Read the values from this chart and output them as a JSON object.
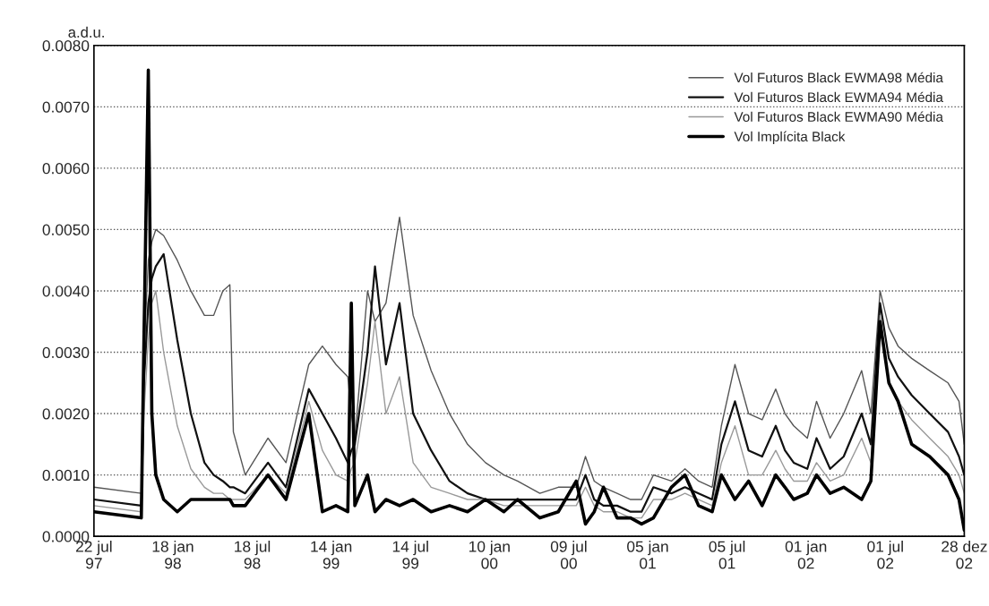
{
  "chart_data": {
    "type": "line",
    "ylabel": "a.d.u.",
    "x": [
      "1997-07-22",
      "1997-11-07",
      "1997-11-13",
      "1997-11-23",
      "1997-12-01",
      "1997-12-10",
      "1997-12-28",
      "1998-01-28",
      "1998-02-28",
      "1998-03-31",
      "1998-04-21",
      "1998-05-12",
      "1998-05-28",
      "1998-06-05",
      "1998-07-02",
      "1998-08-23",
      "1998-10-03",
      "1998-11-24",
      "1998-12-25",
      "1999-01-25",
      "1999-02-21",
      "1999-03-01",
      "1999-03-09",
      "1999-04-07",
      "1999-04-24",
      "1999-05-19",
      "1999-06-19",
      "1999-07-20",
      "1999-08-30",
      "1999-10-11",
      "1999-11-21",
      "2000-01-01",
      "2000-02-12",
      "2000-03-14",
      "2000-05-04",
      "2000-06-15",
      "2000-07-26",
      "2000-08-16",
      "2000-09-05",
      "2000-09-26",
      "2000-10-27",
      "2000-11-27",
      "2000-12-22",
      "2001-01-18",
      "2001-02-28",
      "2001-03-31",
      "2001-05-01",
      "2001-06-01",
      "2001-06-22",
      "2001-07-23",
      "2001-08-23",
      "2001-09-23",
      "2001-10-24",
      "2001-11-14",
      "2001-12-04",
      "2002-01-04",
      "2002-01-25",
      "2002-02-25",
      "2002-03-28",
      "2002-05-08",
      "2002-05-29",
      "2002-06-19",
      "2002-07-09",
      "2002-07-30",
      "2002-08-30",
      "2002-10-10",
      "2002-11-21",
      "2002-12-16",
      "2002-12-28"
    ],
    "series": [
      {
        "name": "Vol Futuros Black EWMA98 Média",
        "color": "#555555",
        "values": [
          0.0008,
          0.0007,
          0.003,
          0.0045,
          0.0048,
          0.005,
          0.0049,
          0.0045,
          0.004,
          0.0036,
          0.0036,
          0.004,
          0.0041,
          0.0017,
          0.001,
          0.0016,
          0.0012,
          0.0028,
          0.0031,
          0.0028,
          0.0026,
          0.002,
          0.0016,
          0.004,
          0.0035,
          0.0038,
          0.0052,
          0.0036,
          0.0027,
          0.002,
          0.0015,
          0.0012,
          0.001,
          0.0009,
          0.0007,
          0.0008,
          0.0008,
          0.0013,
          0.0009,
          0.0008,
          0.0007,
          0.0006,
          0.0006,
          0.001,
          0.0009,
          0.0011,
          0.0009,
          0.0008,
          0.0018,
          0.0028,
          0.002,
          0.0019,
          0.0024,
          0.002,
          0.0018,
          0.0016,
          0.0022,
          0.0016,
          0.002,
          0.0027,
          0.002,
          0.004,
          0.0034,
          0.0031,
          0.0029,
          0.0027,
          0.0025,
          0.0022,
          0.0015
        ]
      },
      {
        "name": "Vol Futuros Black EWMA94 Média",
        "color": "#111111",
        "values": [
          0.0006,
          0.0005,
          0.0025,
          0.0038,
          0.0042,
          0.0044,
          0.0046,
          0.0032,
          0.002,
          0.0012,
          0.001,
          0.0009,
          0.0008,
          0.0008,
          0.0007,
          0.0012,
          0.0008,
          0.0024,
          0.002,
          0.0016,
          0.0012,
          0.0014,
          0.0015,
          0.003,
          0.0044,
          0.0028,
          0.0038,
          0.002,
          0.0014,
          0.0009,
          0.0007,
          0.0006,
          0.0006,
          0.0006,
          0.0006,
          0.0006,
          0.0006,
          0.001,
          0.0006,
          0.0005,
          0.0005,
          0.0004,
          0.0004,
          0.0008,
          0.0007,
          0.0008,
          0.0007,
          0.0006,
          0.0015,
          0.0022,
          0.0014,
          0.0013,
          0.0018,
          0.0014,
          0.0012,
          0.0011,
          0.0016,
          0.0011,
          0.0013,
          0.002,
          0.0015,
          0.0038,
          0.0029,
          0.0026,
          0.0023,
          0.002,
          0.0017,
          0.0013,
          0.001
        ]
      },
      {
        "name": "Vol Futuros Black EWMA90 Média",
        "color": "#999999",
        "values": [
          0.0005,
          0.0004,
          0.002,
          0.0032,
          0.0038,
          0.004,
          0.003,
          0.0018,
          0.0011,
          0.0008,
          0.0007,
          0.0007,
          0.0006,
          0.0006,
          0.0006,
          0.001,
          0.0007,
          0.0022,
          0.0014,
          0.001,
          0.0009,
          0.0011,
          0.0012,
          0.0025,
          0.0035,
          0.002,
          0.0026,
          0.0012,
          0.0008,
          0.0007,
          0.0006,
          0.0006,
          0.0005,
          0.0005,
          0.0005,
          0.0005,
          0.0005,
          0.0008,
          0.0005,
          0.0004,
          0.0004,
          0.0003,
          0.0003,
          0.0006,
          0.0006,
          0.0007,
          0.0006,
          0.0005,
          0.0012,
          0.0018,
          0.001,
          0.001,
          0.0014,
          0.0011,
          0.0009,
          0.0009,
          0.0012,
          0.0009,
          0.001,
          0.0016,
          0.0012,
          0.0036,
          0.0025,
          0.0022,
          0.0019,
          0.0016,
          0.0013,
          0.001,
          0.0007
        ]
      },
      {
        "name": "Vol Implícita Black",
        "color": "#000000",
        "values": [
          0.0004,
          0.0003,
          0.0032,
          0.0076,
          0.002,
          0.001,
          0.0006,
          0.0004,
          0.0006,
          0.0006,
          0.0006,
          0.0006,
          0.0006,
          0.0005,
          0.0005,
          0.001,
          0.0006,
          0.002,
          0.0004,
          0.0005,
          0.0004,
          0.0038,
          0.0005,
          0.001,
          0.0004,
          0.0006,
          0.0005,
          0.0006,
          0.0004,
          0.0005,
          0.0004,
          0.0006,
          0.0004,
          0.0006,
          0.0003,
          0.0004,
          0.0009,
          0.0002,
          0.0004,
          0.0008,
          0.0003,
          0.0003,
          0.0002,
          0.0003,
          0.0008,
          0.001,
          0.0005,
          0.0004,
          0.001,
          0.0006,
          0.0009,
          0.0005,
          0.001,
          0.0008,
          0.0006,
          0.0007,
          0.001,
          0.0007,
          0.0008,
          0.0006,
          0.0009,
          0.0035,
          0.0025,
          0.0022,
          0.0015,
          0.0013,
          0.001,
          0.0006,
          0.0001
        ]
      }
    ],
    "xlim": [
      "1997-07-22",
      "2002-12-28"
    ],
    "xticks": [
      {
        "value": "1997-07-22",
        "label": "22 jul\n97"
      },
      {
        "value": "1998-01-18",
        "label": "18 jan\n98"
      },
      {
        "value": "1998-07-18",
        "label": "18 jul\n98"
      },
      {
        "value": "1999-01-14",
        "label": "14 jan\n99"
      },
      {
        "value": "1999-07-14",
        "label": "14 jul\n99"
      },
      {
        "value": "2000-01-10",
        "label": "10 jan\n00"
      },
      {
        "value": "2000-07-09",
        "label": "09 jul\n00"
      },
      {
        "value": "2001-01-05",
        "label": "05 jan\n01"
      },
      {
        "value": "2001-07-05",
        "label": "05 jul\n01"
      },
      {
        "value": "2002-01-01",
        "label": "01 jan\n02"
      },
      {
        "value": "2002-07-01",
        "label": "01 jul\n02"
      },
      {
        "value": "2002-12-28",
        "label": "28 dez\n02"
      }
    ],
    "ylim": [
      0,
      0.008
    ],
    "yticks": [
      {
        "value": 0,
        "label": "0.0000"
      },
      {
        "value": 0.001,
        "label": "0.0010"
      },
      {
        "value": 0.002,
        "label": "0.0020"
      },
      {
        "value": 0.003,
        "label": "0.0030"
      },
      {
        "value": 0.004,
        "label": "0.0040"
      },
      {
        "value": 0.005,
        "label": "0.0050"
      },
      {
        "value": 0.006,
        "label": "0.0060"
      },
      {
        "value": 0.007,
        "label": "0.0070"
      },
      {
        "value": 0.008,
        "label": "0.0080"
      }
    ],
    "grid": "y",
    "legend": "top right",
    "line_style": "solid",
    "marker": "none"
  }
}
